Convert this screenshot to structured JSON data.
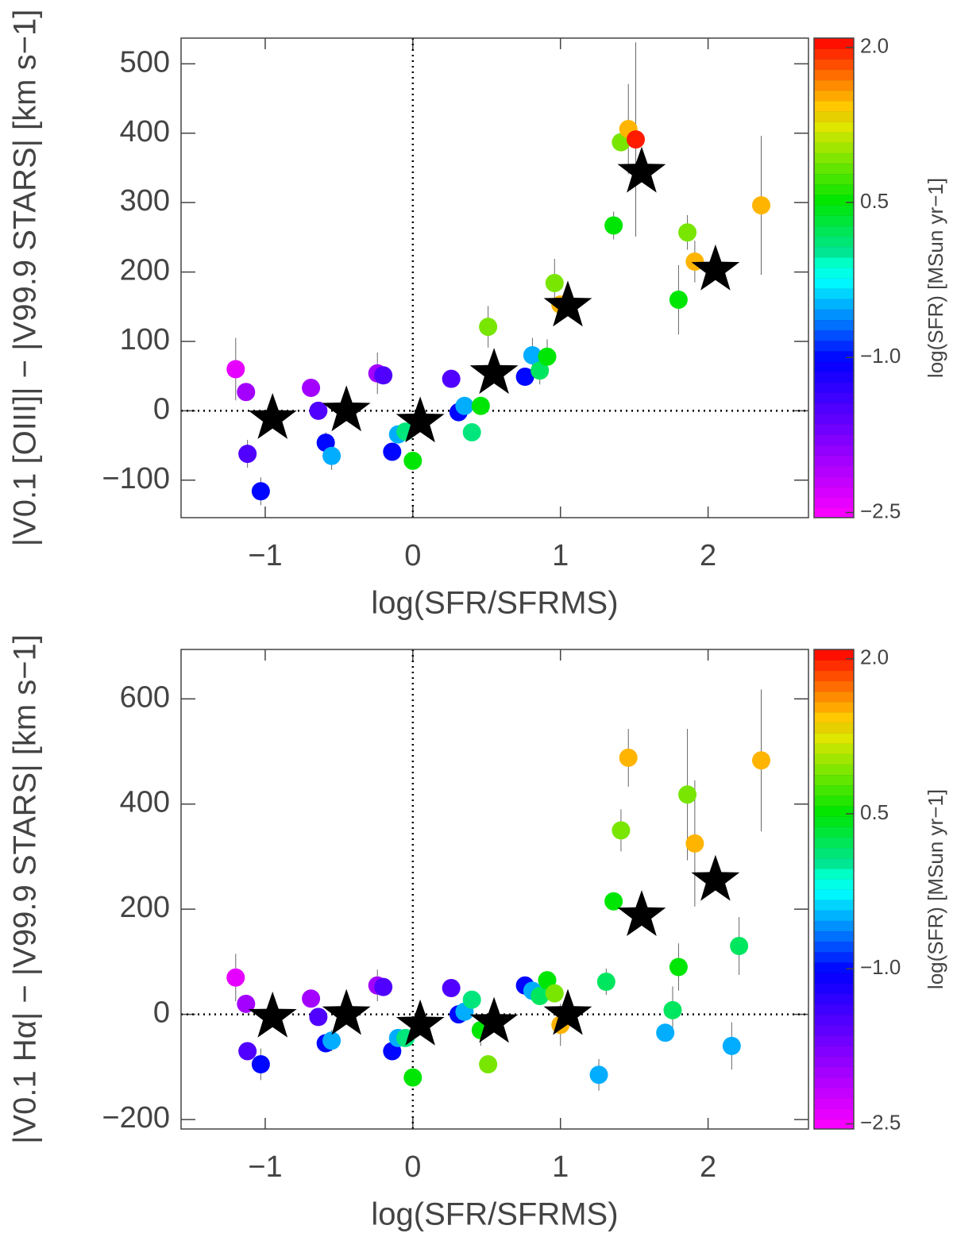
{
  "chart_data": [
    {
      "type": "scatter",
      "xlabel": "log(SFR/SFRMS)",
      "ylabel": "|V0.1 [OIII]| − |V99.9 STARS| [km s−1]",
      "xlim": [
        -1.57,
        2.68
      ],
      "xticks": [
        {
          "value": -1,
          "label": "−1"
        },
        0,
        1,
        2
      ],
      "ylim": [
        -154,
        537
      ],
      "yticks": [
        {
          "value": -100,
          "label": "−100"
        },
        0,
        100,
        200,
        300,
        400,
        500
      ],
      "zero_lines": true,
      "points": {
        "x": [
          -1.2,
          -1.13,
          -1.12,
          -1.03,
          -0.69,
          -0.64,
          -0.59,
          -0.55,
          -0.24,
          -0.2,
          -0.14,
          -0.1,
          -0.05,
          0.0,
          0.26,
          0.31,
          0.35,
          0.4,
          0.46,
          0.51,
          0.76,
          0.81,
          0.86,
          0.91,
          0.96,
          1.0,
          1.36,
          1.41,
          1.46,
          1.51,
          1.8,
          1.86,
          1.91,
          2.36
        ],
        "y": [
          60,
          27,
          -62,
          -116,
          33,
          0,
          -46,
          -65,
          54,
          51,
          -59,
          -34,
          -30,
          -72,
          46,
          -2,
          7,
          -31,
          7,
          121,
          49,
          80,
          58,
          78,
          184,
          153,
          267,
          387,
          406,
          391,
          160,
          257,
          215,
          296
        ],
        "err": [
          45,
          10,
          20,
          20,
          10,
          10,
          15,
          20,
          30,
          10,
          10,
          10,
          10,
          10,
          10,
          10,
          10,
          10,
          10,
          30,
          10,
          25,
          20,
          25,
          35,
          10,
          20,
          10,
          65,
          140,
          50,
          25,
          30,
          100
        ],
        "c": [
          -2.4,
          -2.0,
          -1.5,
          -1.0,
          -2.0,
          -1.5,
          -1.0,
          -0.5,
          -2.0,
          -1.5,
          -1.0,
          -0.5,
          0.1,
          0.5,
          -1.5,
          -1.0,
          -0.5,
          0.1,
          0.5,
          0.9,
          -1.0,
          -0.5,
          0.2,
          0.5,
          0.9,
          1.5,
          0.5,
          0.9,
          1.5,
          2.0,
          0.5,
          0.9,
          1.5,
          1.5
        ]
      },
      "stars": {
        "x": [
          -0.95,
          -0.45,
          0.05,
          0.55,
          1.05,
          1.55,
          2.05
        ],
        "y": [
          -11,
          0,
          -16,
          54,
          151,
          344,
          203
        ]
      },
      "colorbar": {
        "label": "log(SFR) [MSun yr−1]",
        "lim": [
          -2.55,
          2.09
        ],
        "ticks": [
          {
            "value": 2,
            "label": "2.0"
          },
          0.5,
          {
            "value": -1,
            "label": "−1.0"
          },
          {
            "value": -2.5,
            "label": "−2.5"
          }
        ]
      }
    },
    {
      "type": "scatter",
      "xlabel": "log(SFR/SFRMS)",
      "ylabel": "|V0.1 Hα| − |V99.9 STARS| [km s−1]",
      "xlim": [
        -1.57,
        2.68
      ],
      "xticks": [
        {
          "value": -1,
          "label": "−1"
        },
        0,
        1,
        2
      ],
      "ylim": [
        -218,
        694
      ],
      "yticks": [
        {
          "value": -200,
          "label": "−200"
        },
        0,
        200,
        400,
        600
      ],
      "zero_lines": true,
      "points": {
        "x": [
          -1.2,
          -1.13,
          -1.12,
          -1.03,
          -0.69,
          -0.64,
          -0.59,
          -0.55,
          -0.24,
          -0.2,
          -0.14,
          -0.1,
          -0.05,
          0.0,
          0.26,
          0.31,
          0.35,
          0.4,
          0.46,
          0.51,
          0.76,
          0.81,
          0.86,
          0.91,
          0.96,
          1.0,
          1.26,
          1.31,
          1.36,
          1.41,
          1.46,
          1.71,
          1.76,
          1.8,
          1.86,
          1.91,
          2.16,
          2.21,
          2.36
        ],
        "y": [
          70,
          20,
          -70,
          -95,
          30,
          -5,
          -55,
          -50,
          55,
          52,
          -70,
          -45,
          -45,
          -120,
          50,
          0,
          5,
          28,
          -30,
          -95,
          55,
          45,
          35,
          65,
          40,
          -20,
          -115,
          62,
          215,
          350,
          488,
          -35,
          8,
          90,
          418,
          325,
          -60,
          130,
          483
        ],
        "err": [
          45,
          15,
          15,
          30,
          10,
          10,
          15,
          20,
          30,
          10,
          10,
          10,
          10,
          10,
          10,
          10,
          10,
          10,
          30,
          10,
          10,
          10,
          10,
          10,
          10,
          40,
          30,
          25,
          10,
          40,
          55,
          10,
          45,
          45,
          125,
          120,
          45,
          55,
          135
        ],
        "c": [
          -2.4,
          -2.0,
          -1.5,
          -1.0,
          -2.0,
          -1.5,
          -1.0,
          -0.5,
          -2.0,
          -1.5,
          -1.0,
          -0.5,
          0.1,
          0.5,
          -1.5,
          -1.0,
          -0.5,
          0.1,
          0.5,
          0.9,
          -1.0,
          -0.5,
          0.2,
          0.5,
          0.9,
          1.5,
          -0.5,
          0.2,
          0.5,
          0.9,
          1.5,
          -0.5,
          0.2,
          0.5,
          0.9,
          1.5,
          -0.5,
          0.2,
          1.5
        ]
      },
      "stars": {
        "x": [
          -0.95,
          -0.45,
          0.05,
          0.55,
          1.05,
          1.55,
          2.05
        ],
        "y": [
          -5,
          0,
          -20,
          -15,
          0,
          188,
          255
        ]
      },
      "colorbar": {
        "label": "log(SFR) [MSun yr−1]",
        "lim": [
          -2.55,
          2.09
        ],
        "ticks": [
          {
            "value": 2,
            "label": "2.0"
          },
          0.5,
          {
            "value": -1,
            "label": "−1.0"
          },
          {
            "value": -2.5,
            "label": "−2.5"
          }
        ]
      }
    }
  ]
}
